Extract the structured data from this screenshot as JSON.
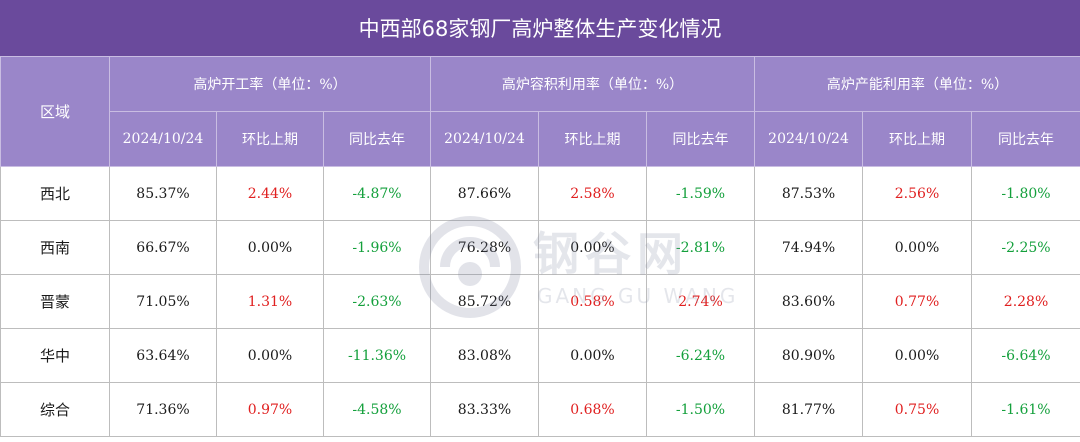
{
  "title": "中西部68家钢厂高炉整体生产变化情况",
  "header": {
    "region": "区域",
    "groups": [
      "高炉开工率（单位：%）",
      "高炉容积利用率（单位：%）",
      "高炉产能利用率（单位：%）"
    ],
    "sub": [
      "2024/10/24",
      "环比上期",
      "同比去年"
    ]
  },
  "rows": [
    {
      "region": "西北",
      "cells": [
        {
          "v": "85.37%",
          "t": "flat"
        },
        {
          "v": "2.44%",
          "t": "up"
        },
        {
          "v": "-4.87%",
          "t": "down"
        },
        {
          "v": "87.66%",
          "t": "flat"
        },
        {
          "v": "2.58%",
          "t": "up"
        },
        {
          "v": "-1.59%",
          "t": "down"
        },
        {
          "v": "87.53%",
          "t": "flat"
        },
        {
          "v": "2.56%",
          "t": "up"
        },
        {
          "v": "-1.80%",
          "t": "down"
        }
      ]
    },
    {
      "region": "西南",
      "cells": [
        {
          "v": "66.67%",
          "t": "flat"
        },
        {
          "v": "0.00%",
          "t": "flat"
        },
        {
          "v": "-1.96%",
          "t": "down"
        },
        {
          "v": "76.28%",
          "t": "flat"
        },
        {
          "v": "0.00%",
          "t": "flat"
        },
        {
          "v": "-2.81%",
          "t": "down"
        },
        {
          "v": "74.94%",
          "t": "flat"
        },
        {
          "v": "0.00%",
          "t": "flat"
        },
        {
          "v": "-2.25%",
          "t": "down"
        }
      ]
    },
    {
      "region": "晋蒙",
      "cells": [
        {
          "v": "71.05%",
          "t": "flat"
        },
        {
          "v": "1.31%",
          "t": "up"
        },
        {
          "v": "-2.63%",
          "t": "down"
        },
        {
          "v": "85.72%",
          "t": "flat"
        },
        {
          "v": "0.58%",
          "t": "up"
        },
        {
          "v": "2.74%",
          "t": "up"
        },
        {
          "v": "83.60%",
          "t": "flat"
        },
        {
          "v": "0.77%",
          "t": "up"
        },
        {
          "v": "2.28%",
          "t": "up"
        }
      ]
    },
    {
      "region": "华中",
      "cells": [
        {
          "v": "63.64%",
          "t": "flat"
        },
        {
          "v": "0.00%",
          "t": "flat"
        },
        {
          "v": "-11.36%",
          "t": "down"
        },
        {
          "v": "83.08%",
          "t": "flat"
        },
        {
          "v": "0.00%",
          "t": "flat"
        },
        {
          "v": "-6.24%",
          "t": "down"
        },
        {
          "v": "80.90%",
          "t": "flat"
        },
        {
          "v": "0.00%",
          "t": "flat"
        },
        {
          "v": "-6.64%",
          "t": "down"
        }
      ]
    },
    {
      "region": "综合",
      "cells": [
        {
          "v": "71.36%",
          "t": "flat"
        },
        {
          "v": "0.97%",
          "t": "up"
        },
        {
          "v": "-4.58%",
          "t": "down"
        },
        {
          "v": "83.33%",
          "t": "flat"
        },
        {
          "v": "0.68%",
          "t": "up"
        },
        {
          "v": "-1.50%",
          "t": "down"
        },
        {
          "v": "81.77%",
          "t": "flat"
        },
        {
          "v": "0.75%",
          "t": "up"
        },
        {
          "v": "-1.61%",
          "t": "down"
        }
      ]
    }
  ],
  "colors": {
    "title_bg": "#6a4a9c",
    "header_bg": "#9a86c9",
    "up": "#e02020",
    "down": "#14a03c"
  },
  "watermark": {
    "cn": "钢谷网",
    "en": "GANG GU WANG",
    "icon": "ganguwang-logo-icon"
  }
}
